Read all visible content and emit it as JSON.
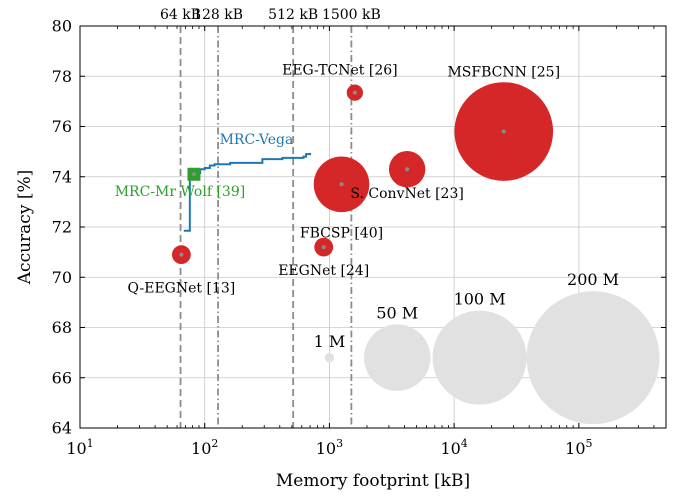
{
  "chart_data": {
    "type": "scatter",
    "xlabel": "Memory footprint [kB]",
    "ylabel": "Accuracy [%]",
    "x_scale": "log",
    "xlim": [
      10,
      500000
    ],
    "ylim": [
      64,
      80
    ],
    "grid": true,
    "x_ticks": [
      10,
      100,
      1000,
      10000,
      100000
    ],
    "x_tick_base": "10",
    "x_tick_exponents": [
      "1",
      "2",
      "3",
      "4",
      "5"
    ],
    "y_ticks": [
      64,
      66,
      68,
      70,
      72,
      74,
      76,
      78,
      80
    ],
    "y_tick_labels": [
      "64",
      "66",
      "68",
      "70",
      "72",
      "74",
      "76",
      "78",
      "80"
    ],
    "memory_limits": [
      {
        "label": "64 kB",
        "x": 64,
        "style": "dashed"
      },
      {
        "label": "128 kB",
        "x": 128,
        "style": "dashdot"
      },
      {
        "label": "512 kB",
        "x": 512,
        "style": "dashed"
      },
      {
        "label": "1500 kB",
        "x": 1500,
        "style": "dashdot"
      }
    ],
    "models": [
      {
        "name": "Q-EEGNet [13]",
        "x": 65,
        "y": 70.9,
        "params_M": 4
      },
      {
        "name": "EEGNet [24]",
        "x": 900,
        "y": 71.2,
        "params_M": 4
      },
      {
        "name": "FBCSP [40]",
        "x": 1250,
        "y": 73.7,
        "params_M": 35
      },
      {
        "name": "S. ConvNet [23]",
        "x": 4200,
        "y": 74.3,
        "params_M": 15
      },
      {
        "name": "EEG-TCNet [26]",
        "x": 1600,
        "y": 77.35,
        "params_M": 3
      },
      {
        "name": "MSFBCNN [25]",
        "x": 25000,
        "y": 75.8,
        "params_M": 110
      }
    ],
    "mrc_vega": {
      "name": "MRC-Vega",
      "x": [
        68,
        75,
        76,
        79,
        82,
        84,
        88,
        92,
        100,
        110,
        120,
        140,
        160,
        200,
        280,
        290,
        400,
        420,
        620,
        650,
        700
      ],
      "y": [
        71.85,
        71.85,
        73.9,
        73.95,
        74.0,
        74.05,
        74.15,
        74.3,
        74.35,
        74.45,
        74.5,
        74.5,
        74.55,
        74.55,
        74.55,
        74.7,
        74.7,
        74.75,
        74.8,
        74.9,
        74.95
      ]
    },
    "mrc_mr_wolf": {
      "name": "MRC-Mr Wolf [39]",
      "x": 82,
      "y": 74.1
    },
    "size_legend": [
      {
        "label": "1 M",
        "params_M": 1,
        "x": 1000
      },
      {
        "label": "50 M",
        "params_M": 50,
        "x": 3500
      },
      {
        "label": "100 M",
        "params_M": 100,
        "x": 16000
      },
      {
        "label": "200 M",
        "params_M": 200,
        "x": 130000
      }
    ],
    "size_legend_y": 66.8,
    "colors": {
      "model": "#d62728",
      "model_center": "#8c8c8c",
      "vega": "#1f77b4",
      "wolf": "#2ca02c",
      "legend_bubble": "#e1e1e1",
      "grid": "#c8c8c8",
      "limit_line": "#8c8c8c"
    }
  }
}
